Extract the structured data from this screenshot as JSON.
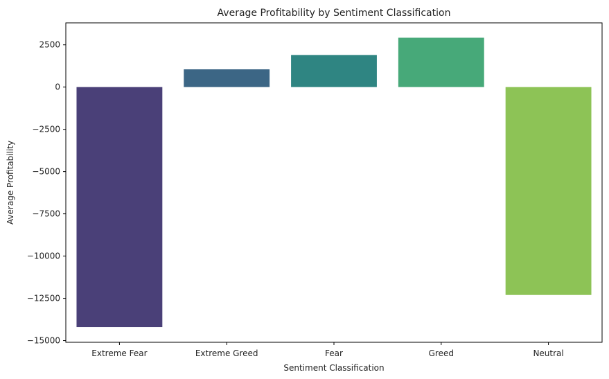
{
  "chart_data": {
    "type": "bar",
    "title": "Average Profitability by Sentiment Classification",
    "xlabel": "Sentiment Classification",
    "ylabel": "Average Profitability",
    "categories": [
      "Extreme Fear",
      "Extreme Greed",
      "Fear",
      "Greed",
      "Neutral"
    ],
    "values": [
      -14200,
      1050,
      1900,
      2920,
      -12300
    ],
    "colors": [
      "#4a4078",
      "#3c6685",
      "#2f8582",
      "#47a979",
      "#8dc356"
    ],
    "ylim": [
      -15100,
      3800
    ],
    "yticks": [
      2500,
      0,
      -2500,
      -5000,
      -7500,
      -10000,
      -12500,
      -15000
    ],
    "ytick_labels": [
      "2500",
      "0",
      "−2500",
      "−5000",
      "−7500",
      "−10000",
      "−12500",
      "−15000"
    ],
    "grid": false,
    "legend": "none"
  }
}
